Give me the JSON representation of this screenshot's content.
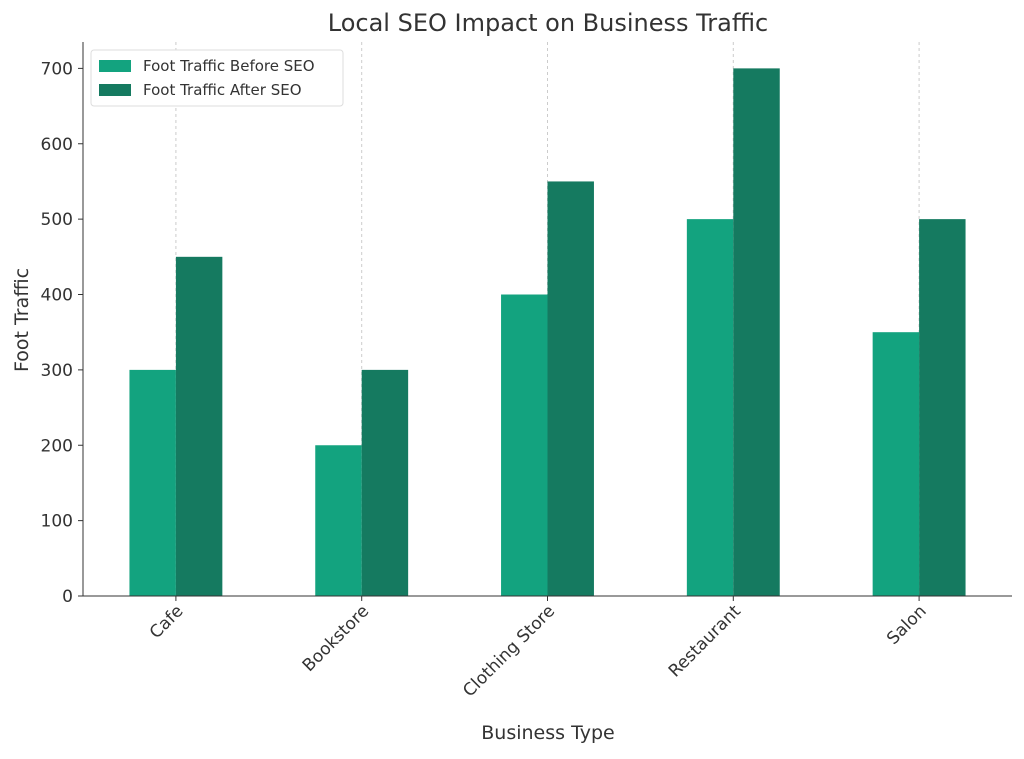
{
  "chart_data": {
    "type": "bar",
    "title": "Local SEO Impact on Business Traffic",
    "x_label": "Business Type",
    "y_label": "Foot Traffic",
    "categories": [
      "Cafe",
      "Bookstore",
      "Clothing Store",
      "Restaurant",
      "Salon"
    ],
    "series": [
      {
        "name": "Foot Traffic Before SEO",
        "color": "#13a37f",
        "values": [
          300,
          200,
          400,
          500,
          350
        ]
      },
      {
        "name": "Foot Traffic After SEO",
        "color": "#157a60",
        "values": [
          450,
          300,
          550,
          700,
          500
        ]
      }
    ],
    "ylim": [
      0,
      735
    ],
    "yticks": [
      0,
      100,
      200,
      300,
      400,
      500,
      600,
      700
    ],
    "grid": true,
    "legend": "upper left"
  }
}
